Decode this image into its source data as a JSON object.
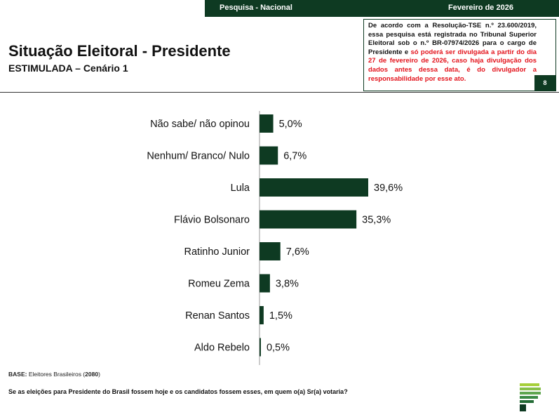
{
  "header": {
    "left_label": "Pesquisa - Nacional",
    "right_label": "Fevereiro de 2026"
  },
  "notice": {
    "part1": "De acordo com a Resolução-TSE n.º 23.600/2019, essa pesquisa está registrada no Tribunal Superior Eleitoral sob o n.º BR-07974/2026 para o cargo de Presidente e ",
    "part2": "só poderá ser divulgada a partir do dia 27 de fevereiro de 2026, caso haja divulgação dos dados antes dessa data, é do divulgador a responsabilidade por esse ato.",
    "page_number": "8"
  },
  "title": "Situação Eleitoral - Presidente",
  "subtitle": "ESTIMULADA – Cenário 1",
  "chart_data": {
    "type": "bar",
    "orientation": "horizontal",
    "categories": [
      "Não sabe/ não opinou",
      "Nenhum/ Branco/ Nulo",
      "Lula",
      "Flávio Bolsonaro",
      "Ratinho Junior",
      "Romeu Zema",
      "Renan Santos",
      "Aldo Rebelo"
    ],
    "values": [
      5.0,
      6.7,
      39.6,
      35.3,
      7.6,
      3.8,
      1.5,
      0.5
    ],
    "value_labels": [
      "5,0%",
      "6,7%",
      "39,6%",
      "35,3%",
      "7,6%",
      "3,8%",
      "1,5%",
      "0,5%"
    ],
    "bar_color": "#0e3a22",
    "xlim": [
      0,
      40
    ],
    "grid": false,
    "legend": "none"
  },
  "base": {
    "label": "BASE:",
    "text": "Eleitores Brasileiros (",
    "count": "2080",
    "close": ")"
  },
  "question": "Se as eleições para Presidente do Brasil fossem hoje e os candidatos fossem esses, em quem o(a) Sr(a) votaria?"
}
